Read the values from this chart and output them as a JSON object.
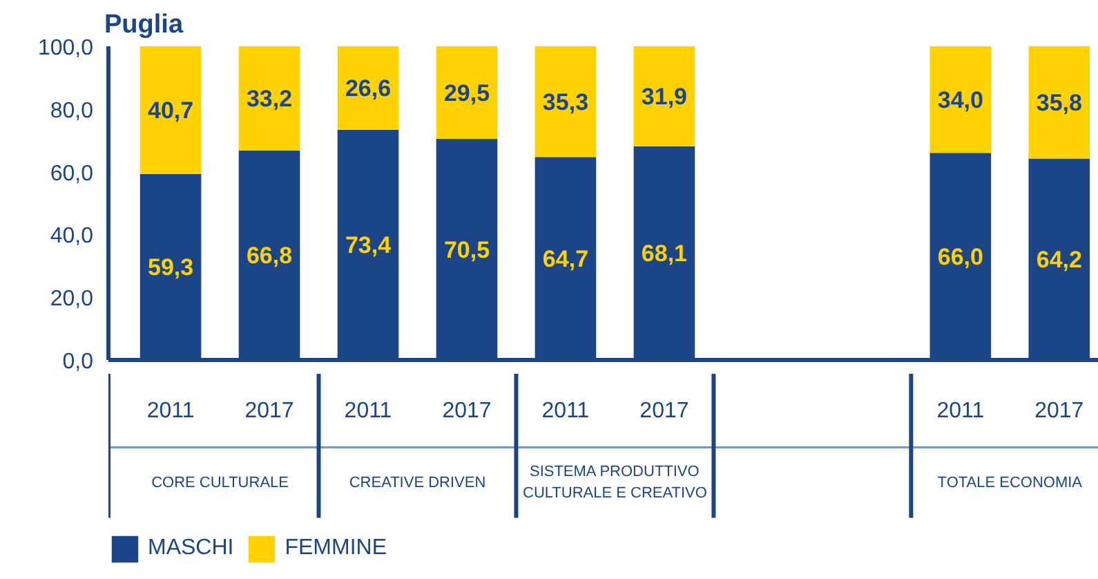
{
  "chart_data": {
    "type": "bar",
    "title": "Puglia",
    "stacked": true,
    "categories": [
      "2011",
      "2017",
      "2011",
      "2017",
      "2011",
      "2017",
      null,
      null,
      "2011",
      "2017"
    ],
    "series": [
      {
        "name": "MASCHI",
        "color": "#1c4587",
        "values": [
          59.3,
          66.8,
          73.4,
          70.5,
          64.7,
          68.1,
          null,
          null,
          66.0,
          64.2
        ],
        "value_labels": [
          "59,3",
          "66,8",
          "73,4",
          "70,5",
          "64,7",
          "68,1",
          null,
          null,
          "66,0",
          "64,2"
        ]
      },
      {
        "name": "FEMMINE",
        "color": "#ffd200",
        "values": [
          40.7,
          33.2,
          26.6,
          29.5,
          35.3,
          31.9,
          null,
          null,
          34.0,
          35.8
        ],
        "value_labels": [
          "40,7",
          "33,2",
          "26,6",
          "29,5",
          "35,3",
          "31,9",
          null,
          null,
          "34,0",
          "35,8"
        ]
      }
    ],
    "ylim": [
      0,
      100
    ],
    "yticks": [
      {
        "value": 0,
        "label": "0,0"
      },
      {
        "value": 20,
        "label": "20,0"
      },
      {
        "value": 40,
        "label": "40,0"
      },
      {
        "value": 60,
        "label": "60,0"
      },
      {
        "value": 80,
        "label": "80,0"
      },
      {
        "value": 100,
        "label": "100,0"
      }
    ],
    "annotations": [
      "CORE CULTURALE",
      "CREATIVE DRIVEN",
      "SISTEMA PRODUTTIVO CULTURALE E CREATIVO",
      "TOTALE ECONOMIA"
    ],
    "grid": false,
    "legend": "bottom left"
  }
}
